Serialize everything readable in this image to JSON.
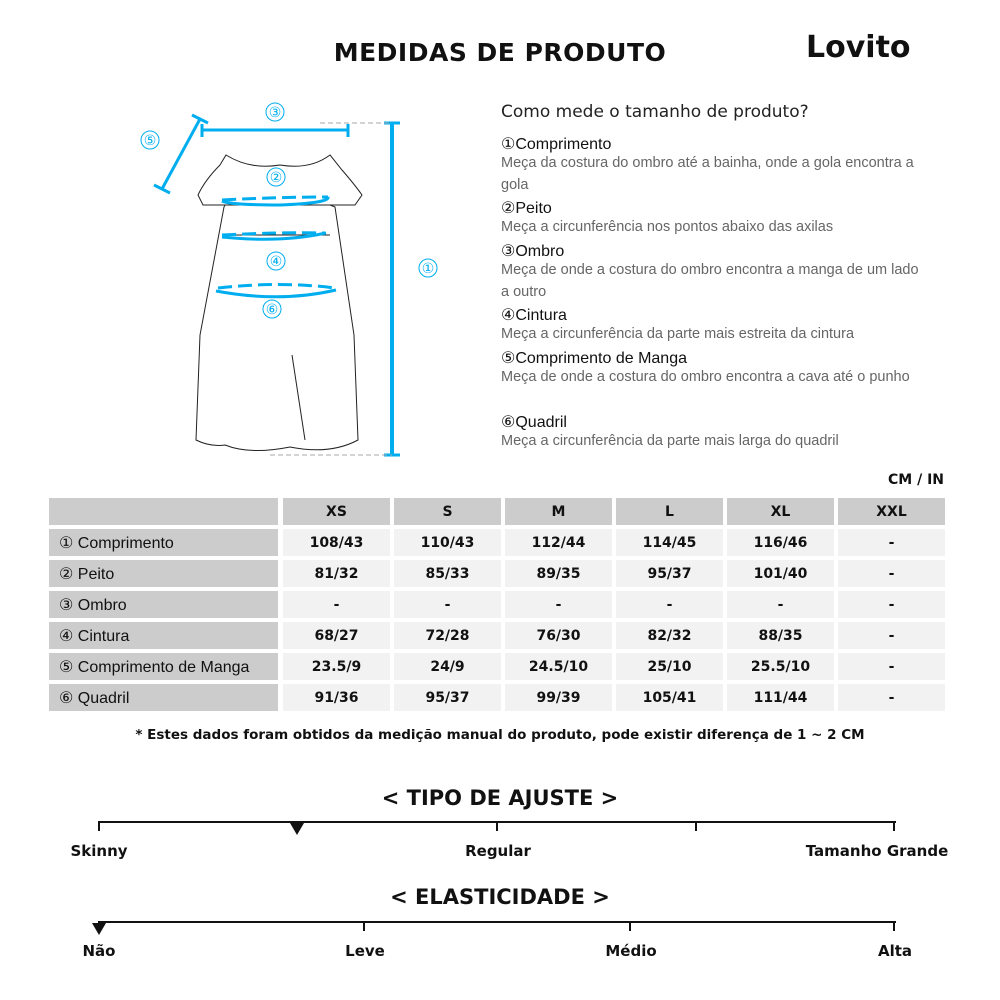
{
  "header": {
    "title": "MEDIDAS DE PRODUTO",
    "brand": "Lovito"
  },
  "diagram": {
    "labels": [
      "①",
      "②",
      "③",
      "④",
      "⑤",
      "⑥"
    ],
    "accent": "#00aeef"
  },
  "guide": {
    "title": "Como mede o tamanho de produto?",
    "items": [
      {
        "name": "①Comprimento",
        "desc": "Meça da costura do ombro até a bainha, onde a gola encontra a gola"
      },
      {
        "name": "②Peito",
        "desc": "Meça a circunferência nos pontos abaixo das axilas"
      },
      {
        "name": "③Ombro",
        "desc": "Meça de onde a costura do ombro encontra a manga de um lado a outro"
      },
      {
        "name": "④Cintura",
        "desc": "Meça a circunferência da parte mais estreita da cintura"
      },
      {
        "name": "⑤Comprimento de Manga",
        "desc": "Meça de onde a costura do ombro encontra a cava até o punho"
      },
      {
        "name": "⑥Quadril",
        "desc": "Meça a circunferência da parte mais larga do quadril"
      }
    ]
  },
  "table": {
    "unit": "CM / IN",
    "sizes": [
      "XS",
      "S",
      "M",
      "L",
      "XL",
      "XXL"
    ],
    "rows": [
      {
        "label": "① Comprimento",
        "values": [
          "108/43",
          "110/43",
          "112/44",
          "114/45",
          "116/46",
          "-"
        ]
      },
      {
        "label": "② Peito",
        "values": [
          "81/32",
          "85/33",
          "89/35",
          "95/37",
          "101/40",
          "-"
        ]
      },
      {
        "label": "③ Ombro",
        "values": [
          "-",
          "-",
          "-",
          "-",
          "-",
          "-"
        ]
      },
      {
        "label": "④ Cintura",
        "values": [
          "68/27",
          "72/28",
          "76/30",
          "82/32",
          "88/35",
          "-"
        ]
      },
      {
        "label": "⑤ Comprimento de Manga",
        "values": [
          "23.5/9",
          "24/9",
          "24.5/10",
          "25/10",
          "25.5/10",
          "-"
        ]
      },
      {
        "label": "⑥ Quadril",
        "values": [
          "91/36",
          "95/37",
          "99/39",
          "105/41",
          "111/44",
          "-"
        ]
      }
    ],
    "note": "* Estes dados foram obtidos da medição manual do produto, pode existir diferença de 1 ~ 2 CM"
  },
  "fit": {
    "title": "< TIPO DE AJUSTE >",
    "labels": [
      "Skinny",
      "Regular",
      "Tamanho Grande"
    ],
    "selected_position": 0.25
  },
  "elasticity": {
    "title": "< ELASTICIDADE >",
    "labels": [
      "Não",
      "Leve",
      "Médio",
      "Alta"
    ],
    "selected": "Não"
  }
}
